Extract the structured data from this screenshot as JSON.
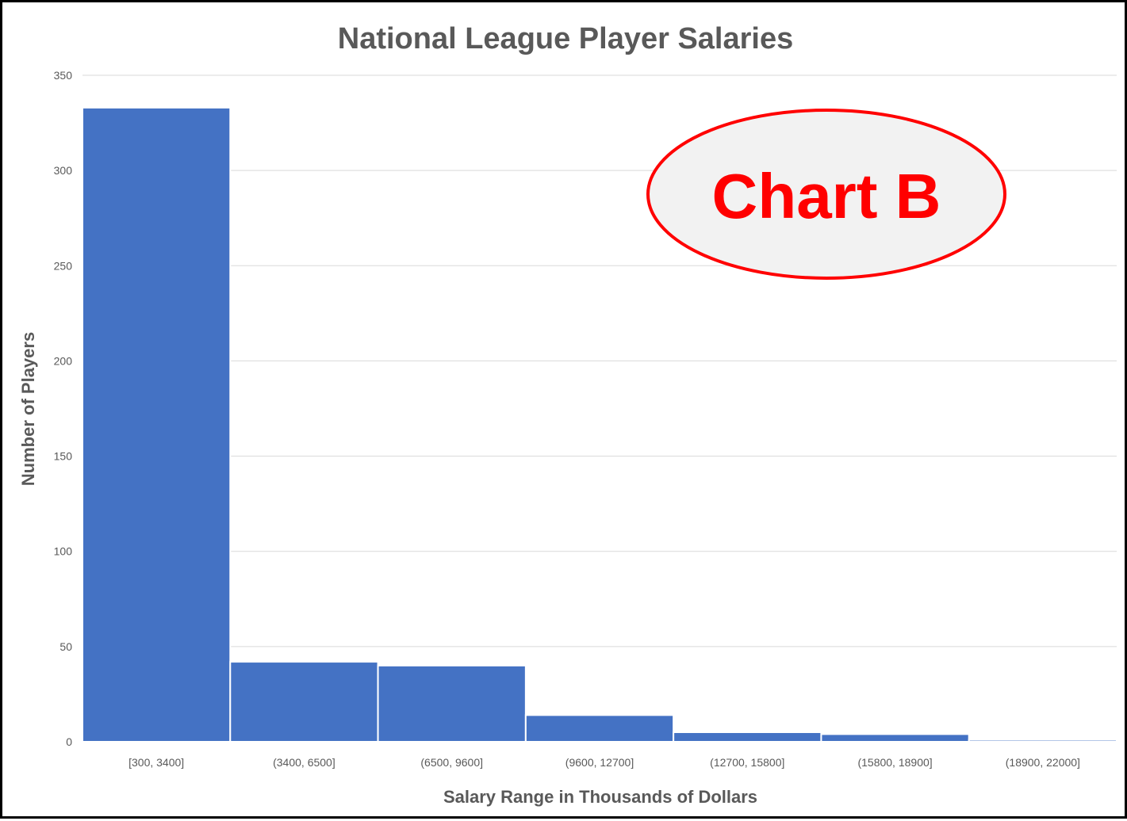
{
  "colors": {
    "bar": "#4472c4",
    "callout": "#ff0000"
  },
  "callout": {
    "label": "Chart B"
  },
  "chart_data": {
    "type": "bar",
    "title": "National League Player Salaries",
    "xlabel": "Salary Range in Thousands of Dollars",
    "ylabel": "Number of Players",
    "categories": [
      "[300, 3400]",
      "(3400, 6500]",
      "(6500, 9600]",
      "(9600, 12700]",
      "(12700, 15800]",
      "(15800, 18900]",
      "(18900, 22000]"
    ],
    "values": [
      333,
      42,
      40,
      14,
      5,
      4,
      1
    ],
    "ylim": [
      0,
      350
    ],
    "yticks": [
      0,
      50,
      100,
      150,
      200,
      250,
      300,
      350
    ],
    "ytick_labels": [
      "0",
      "50",
      "100",
      "150",
      "200",
      "250",
      "300",
      "350"
    ],
    "grid": true,
    "legend": "none"
  }
}
